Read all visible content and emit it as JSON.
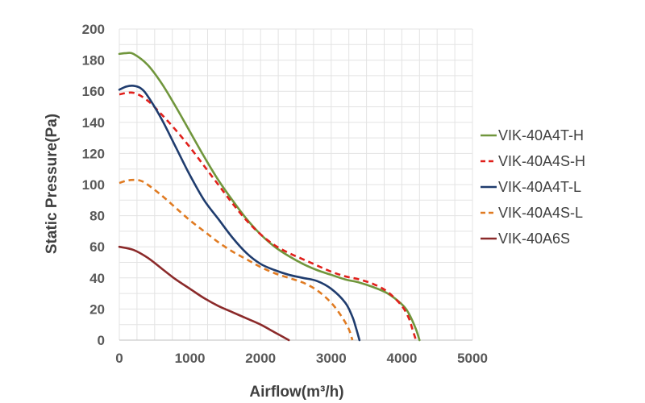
{
  "chart_data": {
    "type": "line",
    "xlabel": "Airflow(m³/h)",
    "ylabel": "Static Pressure(Pa)",
    "xlim": [
      0,
      5000
    ],
    "ylim": [
      0,
      200
    ],
    "x_ticks": [
      "0",
      "1000",
      "2000",
      "3000",
      "4000",
      "5000"
    ],
    "y_ticks": [
      "0",
      "20",
      "40",
      "60",
      "80",
      "100",
      "120",
      "140",
      "160",
      "180",
      "200"
    ],
    "grid": true,
    "legend_position": "right",
    "series": [
      {
        "name": "VIK-40A4T-H",
        "color": "#70963c",
        "dash": "solid",
        "points": [
          [
            0,
            184
          ],
          [
            100,
            184.5
          ],
          [
            200,
            184
          ],
          [
            400,
            177
          ],
          [
            600,
            165
          ],
          [
            800,
            150
          ],
          [
            1000,
            134
          ],
          [
            1200,
            118
          ],
          [
            1400,
            103
          ],
          [
            1600,
            90
          ],
          [
            1800,
            78
          ],
          [
            2000,
            68
          ],
          [
            2200,
            60
          ],
          [
            2400,
            54
          ],
          [
            2600,
            49
          ],
          [
            2800,
            45
          ],
          [
            3000,
            42
          ],
          [
            3200,
            39
          ],
          [
            3400,
            37
          ],
          [
            3600,
            34
          ],
          [
            3800,
            30
          ],
          [
            4000,
            23
          ],
          [
            4100,
            17
          ],
          [
            4200,
            7
          ],
          [
            4250,
            0
          ]
        ]
      },
      {
        "name": "VIK-40A4S-H",
        "color": "#e0201b",
        "dash": "dashed",
        "points": [
          [
            0,
            158
          ],
          [
            200,
            159
          ],
          [
            400,
            154
          ],
          [
            600,
            145
          ],
          [
            800,
            135
          ],
          [
            1000,
            124
          ],
          [
            1200,
            112
          ],
          [
            1400,
            100
          ],
          [
            1600,
            88
          ],
          [
            1800,
            77
          ],
          [
            2000,
            68
          ],
          [
            2200,
            61
          ],
          [
            2400,
            56
          ],
          [
            2600,
            52
          ],
          [
            2800,
            48
          ],
          [
            3000,
            44
          ],
          [
            3200,
            41
          ],
          [
            3400,
            39
          ],
          [
            3600,
            36
          ],
          [
            3800,
            31
          ],
          [
            4000,
            22
          ],
          [
            4100,
            14
          ],
          [
            4150,
            7
          ],
          [
            4200,
            0
          ]
        ]
      },
      {
        "name": "VIK-40A4T-L",
        "color": "#1f3c6e",
        "dash": "solid",
        "points": [
          [
            0,
            161
          ],
          [
            100,
            163
          ],
          [
            200,
            163.5
          ],
          [
            300,
            162
          ],
          [
            400,
            157
          ],
          [
            600,
            142
          ],
          [
            800,
            124
          ],
          [
            1000,
            106
          ],
          [
            1200,
            90
          ],
          [
            1400,
            78
          ],
          [
            1600,
            66
          ],
          [
            1800,
            56
          ],
          [
            2000,
            49
          ],
          [
            2200,
            45
          ],
          [
            2400,
            42
          ],
          [
            2600,
            40
          ],
          [
            2800,
            38
          ],
          [
            3000,
            33
          ],
          [
            3200,
            24
          ],
          [
            3300,
            15
          ],
          [
            3350,
            8
          ],
          [
            3400,
            0
          ]
        ]
      },
      {
        "name": "VIK-40A4S-L",
        "color": "#e07b22",
        "dash": "dashed",
        "points": [
          [
            0,
            101
          ],
          [
            100,
            102.5
          ],
          [
            200,
            103
          ],
          [
            300,
            102.5
          ],
          [
            400,
            100
          ],
          [
            600,
            93
          ],
          [
            800,
            85
          ],
          [
            1000,
            77
          ],
          [
            1200,
            70
          ],
          [
            1400,
            63
          ],
          [
            1600,
            57
          ],
          [
            1800,
            52
          ],
          [
            2000,
            47
          ],
          [
            2200,
            43
          ],
          [
            2400,
            40
          ],
          [
            2600,
            37
          ],
          [
            2800,
            32
          ],
          [
            3000,
            24
          ],
          [
            3150,
            15
          ],
          [
            3250,
            7
          ],
          [
            3300,
            0
          ]
        ]
      },
      {
        "name": "VIK-40A6S",
        "color": "#8b2a2a",
        "dash": "solid",
        "points": [
          [
            0,
            60
          ],
          [
            200,
            58
          ],
          [
            400,
            53
          ],
          [
            600,
            46
          ],
          [
            800,
            39
          ],
          [
            1000,
            33
          ],
          [
            1200,
            27
          ],
          [
            1400,
            22
          ],
          [
            1600,
            18
          ],
          [
            1800,
            14
          ],
          [
            2000,
            10
          ],
          [
            2200,
            5
          ],
          [
            2400,
            0
          ]
        ]
      }
    ]
  }
}
